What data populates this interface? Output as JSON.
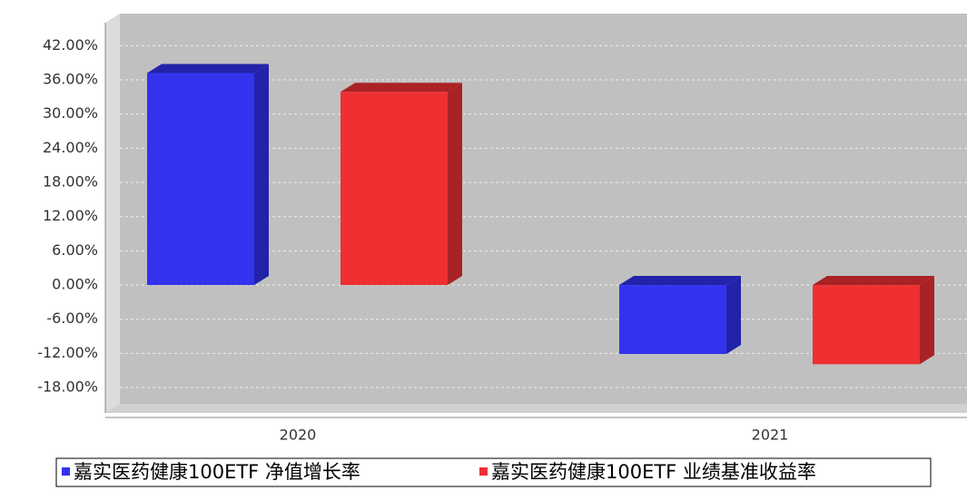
{
  "chart_data": {
    "type": "bar3d",
    "categories": [
      "2020",
      "2021"
    ],
    "series": [
      {
        "name": "嘉实医药健康100ETF 净值增长率",
        "color": "#3333ee",
        "side": "#2222aa",
        "values": [
          37.2,
          -12.1
        ]
      },
      {
        "name": "嘉实医药健康100ETF 业绩基准收益率",
        "color": "#ee3033",
        "side": "#aa2224",
        "values": [
          33.9,
          -13.9
        ]
      }
    ],
    "ylim": [
      -20.7,
      47
    ],
    "yticks": [
      {
        "value": -18,
        "label": "-18.00%"
      },
      {
        "value": -12,
        "label": "-12.00%"
      },
      {
        "value": -6,
        "label": "-6.00%"
      },
      {
        "value": 0,
        "label": "0.00%"
      },
      {
        "value": 6,
        "label": "6.00%"
      },
      {
        "value": 12,
        "label": "12.00%"
      },
      {
        "value": 18,
        "label": "18.00%"
      },
      {
        "value": 24,
        "label": "24.00%"
      },
      {
        "value": 30,
        "label": "30.00%"
      },
      {
        "value": 36,
        "label": "36.00%"
      },
      {
        "value": 42,
        "label": "42.00%"
      }
    ],
    "grid": true
  }
}
